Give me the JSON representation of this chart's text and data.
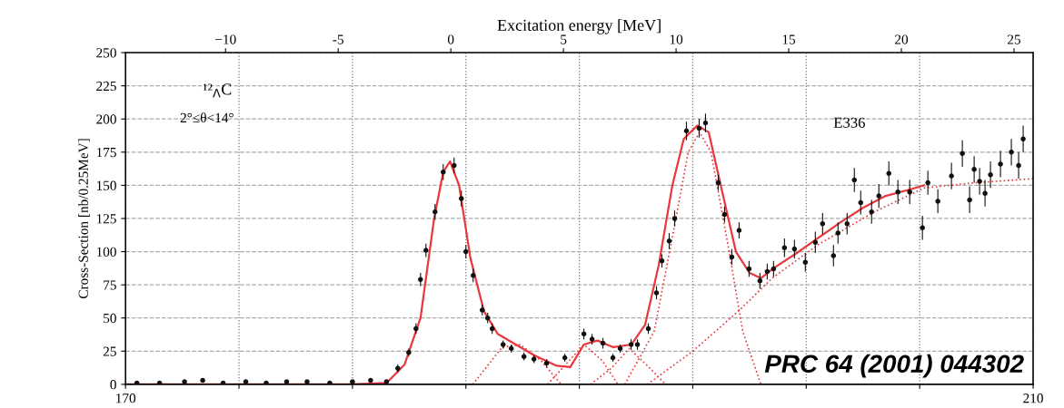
{
  "chart_data": {
    "type": "scatter",
    "x2label": "Excitation energy [MeV]",
    "ylabel": "Cross-Section [nb/0.25MeV]",
    "xlim": [
      170,
      210
    ],
    "xticks": [
      170,
      {
        "value": 175,
        "label": null
      },
      {
        "value": 180,
        "label": null
      },
      {
        "value": 185,
        "label": null
      },
      {
        "value": 190,
        "label": null
      },
      {
        "value": 195,
        "label": null
      },
      {
        "value": 200,
        "label": null
      },
      {
        "value": 205,
        "label": null
      },
      210
    ],
    "x2lim": [
      -14.44,
      25.85
    ],
    "x2ticks": [
      {
        "value": -10,
        "label": "−10"
      },
      {
        "value": -5,
        "label": "-5"
      },
      0,
      5,
      10,
      15,
      20,
      25
    ],
    "ylim": [
      0,
      250
    ],
    "yticks": [
      0,
      25,
      50,
      75,
      100,
      125,
      150,
      175,
      200,
      225,
      250
    ],
    "grid": true,
    "annotations": [
      "¹²$_{Λ}$C",
      "2°≤θ<14°",
      "E336",
      "PRC 64 (2001) 044302"
    ],
    "series": [
      {
        "color": "#111111",
        "marker": "circle",
        "x": [
          170.5,
          171.5,
          172.6,
          173.4,
          174.3,
          175.3,
          176.2,
          177.1,
          178.0,
          179.0,
          180.0,
          180.8,
          181.5,
          182.0,
          182.48,
          182.8,
          183.0,
          183.24,
          183.64,
          184.0,
          184.48,
          184.8,
          185.0,
          185.32,
          185.72,
          185.96,
          186.16,
          186.64,
          187.0,
          187.56,
          188.0,
          188.56,
          189.36,
          190.2,
          190.56,
          191.04,
          191.48,
          191.8,
          192.28,
          192.56,
          193.04,
          193.4,
          193.64,
          193.96,
          194.2,
          194.72,
          195.28,
          195.56,
          196.12,
          196.4,
          196.72,
          197.04,
          197.48,
          197.96,
          198.28,
          198.56,
          199.04,
          199.48,
          199.96,
          200.4,
          200.72,
          201.2,
          201.4,
          201.8,
          202.12,
          202.4,
          202.88,
          203.2,
          203.64,
          204.04,
          204.56,
          205.12,
          205.36,
          205.8,
          206.4,
          206.88,
          207.2,
          207.4,
          207.64,
          207.88,
          208.12,
          208.56,
          209.04,
          209.36,
          209.56
        ],
        "values": [
          1,
          1,
          2,
          3,
          1,
          2,
          1,
          2,
          2,
          1,
          2,
          3,
          2,
          12,
          24,
          42,
          79,
          101,
          130,
          160,
          165,
          140,
          100,
          82,
          56,
          50,
          42,
          30,
          27,
          21,
          19,
          16,
          20,
          38,
          34,
          31,
          20,
          27,
          30,
          30,
          42,
          69,
          93,
          108,
          125,
          191,
          193,
          197,
          152,
          128,
          96,
          116,
          87,
          78,
          85,
          87,
          103,
          102,
          92,
          107,
          121,
          97,
          114,
          121,
          154,
          137,
          130,
          142,
          159,
          145,
          145,
          118,
          152,
          138,
          157,
          174,
          139,
          162,
          153,
          144,
          158,
          166,
          175,
          165,
          185
        ],
        "errors": [
          null,
          null,
          null,
          null,
          null,
          null,
          null,
          null,
          null,
          null,
          null,
          null,
          null,
          3,
          3,
          4,
          5,
          5,
          6,
          6,
          6,
          6,
          5,
          5,
          4,
          4,
          4,
          3,
          3,
          3,
          3,
          3,
          3,
          4,
          4,
          4,
          3,
          3,
          4,
          4,
          4,
          5,
          5,
          6,
          6,
          7,
          7,
          7,
          6,
          6,
          6,
          6,
          6,
          6,
          6,
          6,
          7,
          7,
          7,
          8,
          8,
          8,
          8,
          8,
          9,
          9,
          9,
          9,
          9,
          9,
          9,
          9,
          9,
          9,
          10,
          10,
          10,
          10,
          10,
          10,
          10,
          10,
          10,
          10,
          10
        ]
      },
      {
        "type": "line",
        "color": "#e8383d",
        "line_style": "solid",
        "x": [
          170,
          180,
          181.5,
          182.3,
          183.0,
          183.6,
          184.0,
          184.3,
          184.7,
          185.2,
          185.8,
          186.4,
          187.2,
          188.0,
          189.0,
          189.6,
          190.2,
          190.8,
          191.5,
          192.3,
          192.9,
          193.5,
          194.1,
          194.6,
          195.2,
          195.7,
          196.3,
          196.9,
          197.5,
          198.0,
          198.6,
          199.5,
          200.5,
          201.5,
          202.5,
          203.5,
          204.6,
          205.2
        ],
        "values": [
          0,
          0,
          1,
          15,
          50,
          125,
          160,
          168,
          150,
          95,
          55,
          38,
          30,
          22,
          14,
          13,
          30,
          33,
          28,
          30,
          45,
          90,
          150,
          185,
          195,
          190,
          145,
          100,
          84,
          80,
          88,
          98,
          110,
          122,
          133,
          142,
          147,
          150
        ]
      },
      {
        "type": "line",
        "color": "#e8383d",
        "line_style": "dotted",
        "x": [
          185.3,
          186.0,
          186.6,
          187.4,
          188.3,
          189.2
        ],
        "values": [
          0,
          15,
          28,
          30,
          18,
          0
        ]
      },
      {
        "type": "line",
        "color": "#e8383d",
        "line_style": "dotted",
        "x": [
          188.6,
          189.4,
          190.2,
          191.0,
          191.7
        ],
        "values": [
          0,
          15,
          30,
          18,
          0
        ]
      },
      {
        "type": "line",
        "color": "#e8383d",
        "line_style": "dotted",
        "x": [
          190.5,
          191.4,
          192.2,
          193.0,
          193.8
        ],
        "values": [
          0,
          12,
          27,
          14,
          0
        ]
      },
      {
        "type": "line",
        "color": "#e8383d",
        "line_style": "dotted",
        "x": [
          192.0,
          193.3,
          194.2,
          194.8,
          195.3,
          195.8,
          196.5,
          197.2,
          198.0
        ],
        "values": [
          0,
          40,
          120,
          175,
          190,
          175,
          110,
          40,
          0
        ]
      },
      {
        "type": "line",
        "color": "#e8383d",
        "line_style": "dotted",
        "x": [
          193.0,
          195.0,
          197.0,
          198.5,
          200.5,
          203.0,
          205.2,
          207.5,
          210.0
        ],
        "values": [
          0,
          25,
          55,
          80,
          105,
          130,
          148,
          152,
          155
        ]
      }
    ]
  }
}
